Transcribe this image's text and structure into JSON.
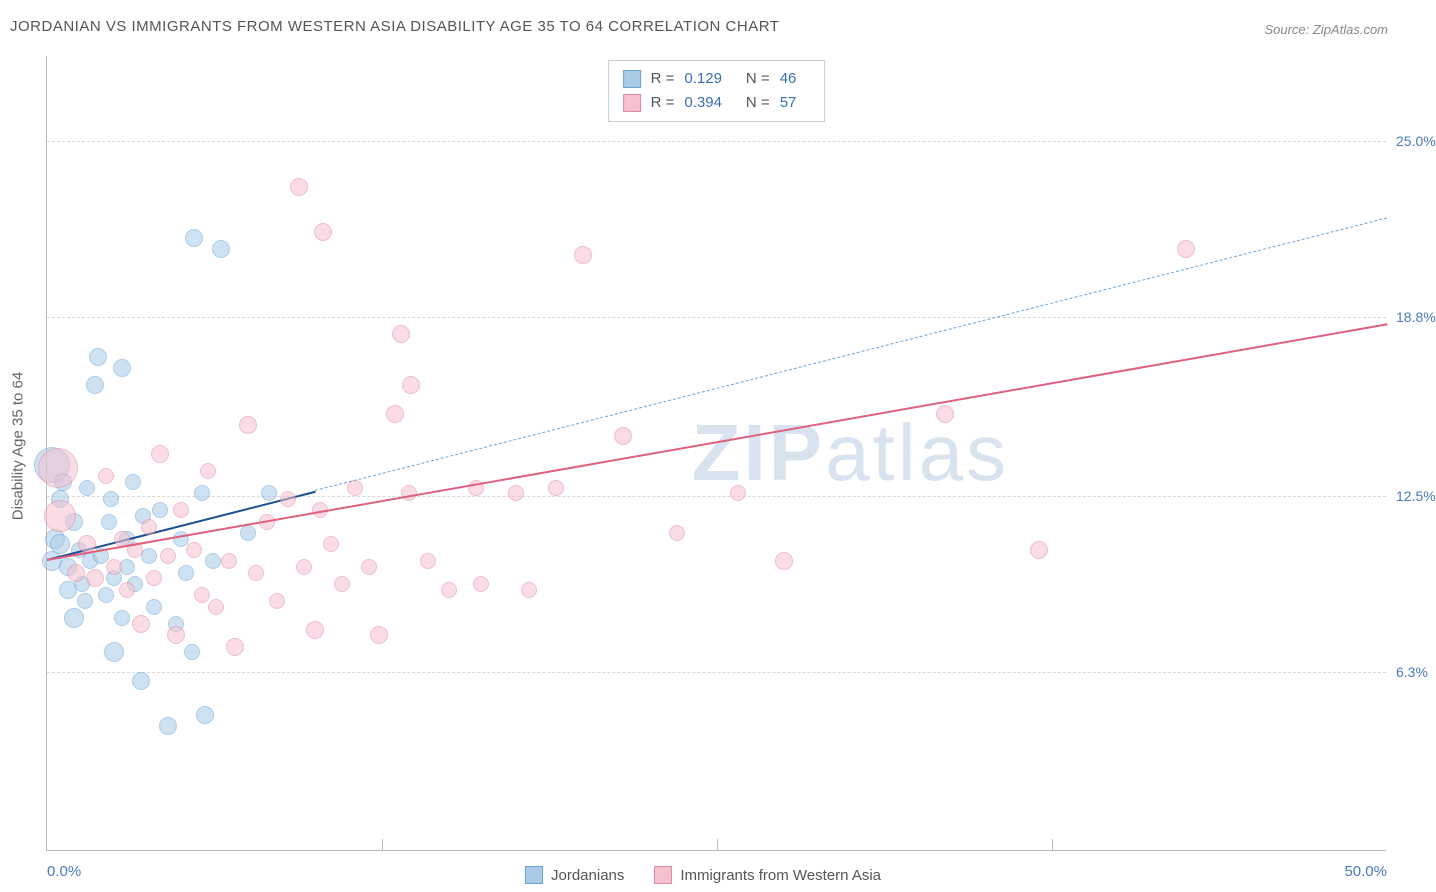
{
  "title": "JORDANIAN VS IMMIGRANTS FROM WESTERN ASIA DISABILITY AGE 35 TO 64 CORRELATION CHART",
  "source": "Source: ZipAtlas.com",
  "y_axis_title": "Disability Age 35 to 64",
  "watermark": {
    "part1": "ZIP",
    "part2": "atlas"
  },
  "chart": {
    "type": "scatter",
    "xlim": [
      0,
      50
    ],
    "ylim": [
      0,
      28
    ],
    "background_color": "#ffffff",
    "grid_color": "#d8d8d8",
    "y_ticks": [
      {
        "value": 6.3,
        "label": "6.3%"
      },
      {
        "value": 12.5,
        "label": "12.5%"
      },
      {
        "value": 18.8,
        "label": "18.8%"
      },
      {
        "value": 25.0,
        "label": "25.0%"
      }
    ],
    "x_ticks": [
      {
        "value": 0,
        "label": "0.0%"
      },
      {
        "value": 50,
        "label": "50.0%"
      }
    ],
    "x_minor_ticks": [
      12.5,
      25,
      37.5
    ]
  },
  "stats": [
    {
      "color_fill": "#a9cbe8",
      "color_border": "#6ba3d6",
      "r_label": "R =",
      "r_value": "0.129",
      "n_label": "N =",
      "n_value": "46"
    },
    {
      "color_fill": "#f5c1ce",
      "color_border": "#e48ba3",
      "r_label": "R =",
      "r_value": "0.394",
      "n_label": "N =",
      "n_value": "57"
    }
  ],
  "legend_bottom": [
    {
      "color_fill": "#a9cbe8",
      "color_border": "#6ba3d6",
      "label": "Jordanians"
    },
    {
      "color_fill": "#f5c1ce",
      "color_border": "#e48ba3",
      "label": "Immigrants from Western Asia"
    }
  ],
  "series": [
    {
      "name": "jordanians",
      "fill": "#a9cbe8",
      "stroke": "#6ba3d6",
      "trend": {
        "x1": 0,
        "y1": 10.3,
        "x2": 10,
        "y2": 12.7,
        "extend_x2": 50,
        "extend_y2": 22.3,
        "solid_color": "#1e4f8f",
        "dash_color": "#6ba3d6",
        "width": 2
      },
      "points": [
        {
          "x": 0.2,
          "y": 10.2,
          "r": 10
        },
        {
          "x": 0.2,
          "y": 13.6,
          "r": 18
        },
        {
          "x": 0.3,
          "y": 11.0,
          "r": 10
        },
        {
          "x": 0.5,
          "y": 10.8,
          "r": 10
        },
        {
          "x": 0.5,
          "y": 12.4,
          "r": 9
        },
        {
          "x": 0.6,
          "y": 13.0,
          "r": 9
        },
        {
          "x": 0.8,
          "y": 9.2,
          "r": 9
        },
        {
          "x": 0.8,
          "y": 10.0,
          "r": 9
        },
        {
          "x": 1.0,
          "y": 11.6,
          "r": 9
        },
        {
          "x": 1.0,
          "y": 8.2,
          "r": 10
        },
        {
          "x": 1.2,
          "y": 10.6,
          "r": 8
        },
        {
          "x": 1.3,
          "y": 9.4,
          "r": 8
        },
        {
          "x": 1.4,
          "y": 8.8,
          "r": 8
        },
        {
          "x": 1.5,
          "y": 12.8,
          "r": 8
        },
        {
          "x": 1.6,
          "y": 10.2,
          "r": 8
        },
        {
          "x": 1.8,
          "y": 16.4,
          "r": 9
        },
        {
          "x": 1.9,
          "y": 17.4,
          "r": 9
        },
        {
          "x": 2.0,
          "y": 10.4,
          "r": 8
        },
        {
          "x": 2.2,
          "y": 9.0,
          "r": 8
        },
        {
          "x": 2.3,
          "y": 11.6,
          "r": 8
        },
        {
          "x": 2.4,
          "y": 12.4,
          "r": 8
        },
        {
          "x": 2.5,
          "y": 7.0,
          "r": 10
        },
        {
          "x": 2.5,
          "y": 9.6,
          "r": 8
        },
        {
          "x": 2.8,
          "y": 8.2,
          "r": 8
        },
        {
          "x": 2.8,
          "y": 17.0,
          "r": 9
        },
        {
          "x": 3.0,
          "y": 10.0,
          "r": 8
        },
        {
          "x": 3.0,
          "y": 11.0,
          "r": 8
        },
        {
          "x": 3.2,
          "y": 13.0,
          "r": 8
        },
        {
          "x": 3.3,
          "y": 9.4,
          "r": 8
        },
        {
          "x": 3.5,
          "y": 6.0,
          "r": 9
        },
        {
          "x": 3.6,
          "y": 11.8,
          "r": 8
        },
        {
          "x": 3.8,
          "y": 10.4,
          "r": 8
        },
        {
          "x": 4.0,
          "y": 8.6,
          "r": 8
        },
        {
          "x": 4.2,
          "y": 12.0,
          "r": 8
        },
        {
          "x": 4.5,
          "y": 4.4,
          "r": 9
        },
        {
          "x": 4.8,
          "y": 8.0,
          "r": 8
        },
        {
          "x": 5.0,
          "y": 11.0,
          "r": 8
        },
        {
          "x": 5.2,
          "y": 9.8,
          "r": 8
        },
        {
          "x": 5.4,
          "y": 7.0,
          "r": 8
        },
        {
          "x": 5.5,
          "y": 21.6,
          "r": 9
        },
        {
          "x": 5.8,
          "y": 12.6,
          "r": 8
        },
        {
          "x": 6.2,
          "y": 10.2,
          "r": 8
        },
        {
          "x": 6.5,
          "y": 21.2,
          "r": 9
        },
        {
          "x": 7.5,
          "y": 11.2,
          "r": 8
        },
        {
          "x": 8.3,
          "y": 12.6,
          "r": 8
        },
        {
          "x": 5.9,
          "y": 4.8,
          "r": 9
        }
      ]
    },
    {
      "name": "immigrants-western-asia",
      "fill": "#f5c1ce",
      "stroke": "#e48ba3",
      "trend": {
        "x1": 0,
        "y1": 10.3,
        "x2": 50,
        "y2": 18.6,
        "solid_color": "#e0607f",
        "width": 2.5
      },
      "points": [
        {
          "x": 0.4,
          "y": 13.5,
          "r": 20
        },
        {
          "x": 0.5,
          "y": 11.8,
          "r": 16
        },
        {
          "x": 1.1,
          "y": 9.8,
          "r": 9
        },
        {
          "x": 1.5,
          "y": 10.8,
          "r": 9
        },
        {
          "x": 1.8,
          "y": 9.6,
          "r": 9
        },
        {
          "x": 2.2,
          "y": 13.2,
          "r": 8
        },
        {
          "x": 2.5,
          "y": 10.0,
          "r": 8
        },
        {
          "x": 2.8,
          "y": 11.0,
          "r": 8
        },
        {
          "x": 3.0,
          "y": 9.2,
          "r": 8
        },
        {
          "x": 3.3,
          "y": 10.6,
          "r": 8
        },
        {
          "x": 3.5,
          "y": 8.0,
          "r": 9
        },
        {
          "x": 3.8,
          "y": 11.4,
          "r": 8
        },
        {
          "x": 4.0,
          "y": 9.6,
          "r": 8
        },
        {
          "x": 4.2,
          "y": 14.0,
          "r": 9
        },
        {
          "x": 4.5,
          "y": 10.4,
          "r": 8
        },
        {
          "x": 4.8,
          "y": 7.6,
          "r": 9
        },
        {
          "x": 5.0,
          "y": 12.0,
          "r": 8
        },
        {
          "x": 5.5,
          "y": 10.6,
          "r": 8
        },
        {
          "x": 5.8,
          "y": 9.0,
          "r": 8
        },
        {
          "x": 6.0,
          "y": 13.4,
          "r": 8
        },
        {
          "x": 6.3,
          "y": 8.6,
          "r": 8
        },
        {
          "x": 6.8,
          "y": 10.2,
          "r": 8
        },
        {
          "x": 7.0,
          "y": 7.2,
          "r": 9
        },
        {
          "x": 7.5,
          "y": 15.0,
          "r": 9
        },
        {
          "x": 7.8,
          "y": 9.8,
          "r": 8
        },
        {
          "x": 8.2,
          "y": 11.6,
          "r": 8
        },
        {
          "x": 8.6,
          "y": 8.8,
          "r": 8
        },
        {
          "x": 9.0,
          "y": 12.4,
          "r": 8
        },
        {
          "x": 9.4,
          "y": 23.4,
          "r": 9
        },
        {
          "x": 9.6,
          "y": 10.0,
          "r": 8
        },
        {
          "x": 10.0,
          "y": 7.8,
          "r": 9
        },
        {
          "x": 10.2,
          "y": 12.0,
          "r": 8
        },
        {
          "x": 10.3,
          "y": 21.8,
          "r": 9
        },
        {
          "x": 10.6,
          "y": 10.8,
          "r": 8
        },
        {
          "x": 11.0,
          "y": 9.4,
          "r": 8
        },
        {
          "x": 11.5,
          "y": 12.8,
          "r": 8
        },
        {
          "x": 12.0,
          "y": 10.0,
          "r": 8
        },
        {
          "x": 12.4,
          "y": 7.6,
          "r": 9
        },
        {
          "x": 13.0,
          "y": 15.4,
          "r": 9
        },
        {
          "x": 13.2,
          "y": 18.2,
          "r": 9
        },
        {
          "x": 13.5,
          "y": 12.6,
          "r": 8
        },
        {
          "x": 13.6,
          "y": 16.4,
          "r": 9
        },
        {
          "x": 14.2,
          "y": 10.2,
          "r": 8
        },
        {
          "x": 15.0,
          "y": 9.2,
          "r": 8
        },
        {
          "x": 16.0,
          "y": 12.8,
          "r": 8
        },
        {
          "x": 16.2,
          "y": 9.4,
          "r": 8
        },
        {
          "x": 17.5,
          "y": 12.6,
          "r": 8
        },
        {
          "x": 18.0,
          "y": 9.2,
          "r": 8
        },
        {
          "x": 19.0,
          "y": 12.8,
          "r": 8
        },
        {
          "x": 20.0,
          "y": 21.0,
          "r": 9
        },
        {
          "x": 21.5,
          "y": 14.6,
          "r": 9
        },
        {
          "x": 23.5,
          "y": 11.2,
          "r": 8
        },
        {
          "x": 27.5,
          "y": 10.2,
          "r": 9
        },
        {
          "x": 33.5,
          "y": 15.4,
          "r": 9
        },
        {
          "x": 37.0,
          "y": 10.6,
          "r": 9
        },
        {
          "x": 42.5,
          "y": 21.2,
          "r": 9
        },
        {
          "x": 25.8,
          "y": 12.6,
          "r": 8
        }
      ]
    }
  ]
}
